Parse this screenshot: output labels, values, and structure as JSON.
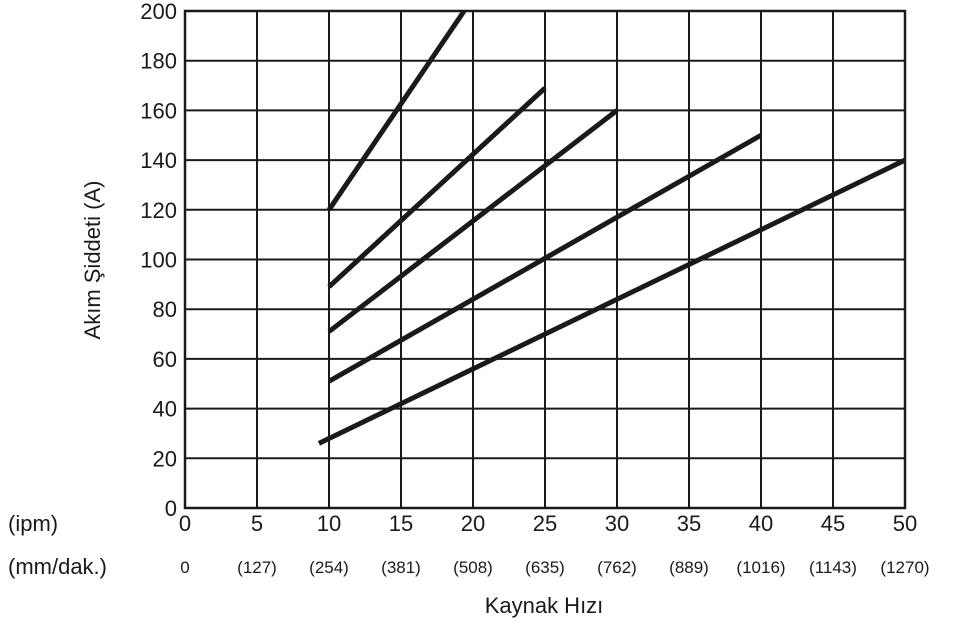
{
  "chart_data": {
    "type": "line",
    "title": "",
    "xlabel": "Kaynak Hızı",
    "ylabel": "Akım Şiddeti (A)",
    "xlim": [
      0,
      50
    ],
    "ylim": [
      0,
      200
    ],
    "grid": true,
    "x_ticks": [
      "0",
      "5",
      "10",
      "15",
      "20",
      "25",
      "30",
      "35",
      "40",
      "45",
      "50"
    ],
    "x_ticks_secondary": [
      "0",
      "(127)",
      "(254)",
      "(381)",
      "(508)",
      "(635)",
      "(762)",
      "(889)",
      "(1016)",
      "(1143)",
      "(1270)"
    ],
    "y_ticks": [
      "0",
      "20",
      "40",
      "60",
      "80",
      "100",
      "120",
      "140",
      "160",
      "180",
      "200"
    ],
    "row_label_primary": "(ipm)",
    "row_label_secondary": "(mm/dak.)",
    "series": [
      {
        "x": [
          10,
          19.5
        ],
        "y": [
          120,
          201
        ]
      },
      {
        "x": [
          10,
          25
        ],
        "y": [
          89,
          169
        ]
      },
      {
        "x": [
          10,
          30
        ],
        "y": [
          71,
          160
        ]
      },
      {
        "x": [
          10,
          40
        ],
        "y": [
          51,
          150
        ]
      },
      {
        "x": [
          9.3,
          50
        ],
        "y": [
          26,
          140
        ]
      }
    ]
  }
}
